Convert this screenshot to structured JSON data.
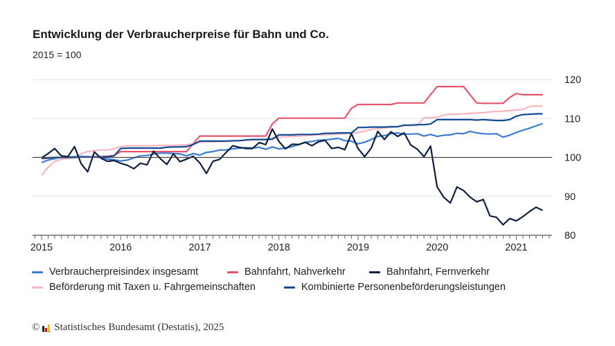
{
  "chart_data": {
    "type": "line",
    "title": "Entwicklung der Verbraucherpreise für Bahn und Co.",
    "subtitle": "2015 = 100",
    "xlabel": "",
    "ylabel": "",
    "x_start": "2015-01",
    "x_frequency": "monthly",
    "x_tick_labels": [
      "2015",
      "2016",
      "2017",
      "2018",
      "2019",
      "2020",
      "2021"
    ],
    "y_tick_labels": [
      "80",
      "90",
      "100",
      "110",
      "120"
    ],
    "ylim": [
      80,
      120
    ],
    "reference_line": 100,
    "grid": true,
    "y_axis_side": "right",
    "legend_position": "bottom",
    "series": [
      {
        "name": "Verbraucherpreisindex insgesamt",
        "color": "#3a7bd5",
        "values": [
          98.7,
          99.3,
          99.7,
          100,
          100.1,
          100.2,
          100.3,
          100.2,
          100.1,
          100,
          99.6,
          99.4,
          99.1,
          99.3,
          99.9,
          100.4,
          100.5,
          100.9,
          101.1,
          101.1,
          101.0,
          100.9,
          100.4,
          101.0,
          100.6,
          101.3,
          101.5,
          101.9,
          101.9,
          102.2,
          102.4,
          102.5,
          102.4,
          102.6,
          102.1,
          102.7,
          102.2,
          102.4,
          102.8,
          103.3,
          103.9,
          104.1,
          104.4,
          104.5,
          104.7,
          104.9,
          104.3,
          104.2,
          103.5,
          103.9,
          104.6,
          105.4,
          105.6,
          106.1,
          106.3,
          106.0,
          106.0,
          106.1,
          105.5,
          105.9,
          105.4,
          105.7,
          105.8,
          106.2,
          106.1,
          106.7,
          106.3,
          106.1,
          106.0,
          106.1,
          105.2,
          105.7,
          106.4,
          107.0,
          107.5,
          108.1,
          108.7
        ]
      },
      {
        "name": "Bahnfahrt, Nahverkehr",
        "color": "#e8546a",
        "values": [
          99.7,
          99.8,
          99.9,
          100,
          100,
          100,
          100.1,
          100.2,
          100.2,
          100.2,
          100.3,
          100.5,
          101.5,
          101.5,
          101.5,
          101.5,
          101.5,
          101.5,
          101.5,
          101.5,
          101.5,
          101.5,
          101.5,
          103.5,
          105.5,
          105.5,
          105.5,
          105.5,
          105.5,
          105.5,
          105.5,
          105.5,
          105.5,
          105.5,
          105.5,
          108.6,
          110.1,
          110.1,
          110.1,
          110.1,
          110.1,
          110.1,
          110.1,
          110.1,
          110.1,
          110.1,
          110.1,
          112.6,
          113.6,
          113.6,
          113.6,
          113.6,
          113.6,
          113.6,
          114,
          114,
          114,
          114,
          114,
          116.1,
          118.2,
          118.2,
          118.2,
          118.2,
          118.2,
          116.1,
          114,
          113.9,
          113.9,
          113.9,
          113.9,
          115.4,
          116.4,
          116.1,
          116.1,
          116.1,
          116.1
        ]
      },
      {
        "name": "Bahnfahrt, Fernverkehr",
        "color": "#0d1f3f",
        "values": [
          99.9,
          101,
          102.3,
          100.4,
          100.2,
          102.8,
          98.4,
          96.3,
          101.4,
          99.8,
          99,
          99.2,
          98.5,
          98,
          97.1,
          98.5,
          98.1,
          101.6,
          99.7,
          98.2,
          100.9,
          98.9,
          99.6,
          100.3,
          98.6,
          95.9,
          99,
          99.5,
          101.3,
          103,
          102.6,
          102.3,
          102.3,
          103.8,
          103.3,
          107.3,
          104.1,
          102.2,
          103.4,
          103.3,
          103.9,
          103,
          104,
          104.4,
          102.3,
          102.6,
          102,
          106.1,
          102.3,
          100.2,
          102.4,
          106.7,
          104.6,
          106.6,
          105.4,
          106.3,
          103.2,
          102.1,
          100.2,
          102.9,
          92.4,
          89.8,
          88.3,
          92.4,
          91.5,
          89.8,
          88.6,
          89.2,
          85,
          84.6,
          82.7,
          84.3,
          83.7,
          84.8,
          86.1,
          87.2,
          86.4
        ]
      },
      {
        "name": "Beförderung mit Taxen u. Fahrgemeinschaften",
        "color": "#f7b7bf",
        "values": [
          95.4,
          97.5,
          99,
          99.5,
          99.8,
          100,
          101,
          101.5,
          101.7,
          101.9,
          101.9,
          102.2,
          102.8,
          103,
          103,
          103,
          103,
          103,
          103.1,
          103.1,
          103.1,
          103.2,
          103.2,
          103.5,
          103.9,
          104,
          104,
          104.1,
          104.1,
          104.2,
          104.3,
          104.4,
          104.5,
          104.6,
          104.7,
          105,
          105.2,
          105.3,
          105.4,
          105.5,
          105.6,
          105.7,
          105.8,
          105.8,
          105.9,
          106,
          106.1,
          106.2,
          106.4,
          106.8,
          107.2,
          107.4,
          107.6,
          107.8,
          107.9,
          108.1,
          108.2,
          108.2,
          110.2,
          110.2,
          110.3,
          110.9,
          111.1,
          111.1,
          111.2,
          111.3,
          111.4,
          111.5,
          111.7,
          111.8,
          111.9,
          112,
          112.2,
          112.3,
          113.1,
          113.2,
          113.2
        ]
      },
      {
        "name": "Kombinierte Personenbeförderungsleistungen",
        "color": "#114b96",
        "values": [
          99.8,
          99.9,
          100,
          100,
          100,
          100,
          100.1,
          100.1,
          100.1,
          100.1,
          100.2,
          100.4,
          102.3,
          102.4,
          102.4,
          102.4,
          102.4,
          102.4,
          102.4,
          102.6,
          102.7,
          102.7,
          102.8,
          103.3,
          104.2,
          104.2,
          104.2,
          104.2,
          104.2,
          104.3,
          104.3,
          104.5,
          104.6,
          104.6,
          104.6,
          104.7,
          105.8,
          105.8,
          105.8,
          105.9,
          105.9,
          105.9,
          106,
          106.2,
          106.2,
          106.3,
          106.3,
          106.3,
          107.7,
          107.7,
          107.8,
          107.8,
          107.8,
          107.9,
          107.9,
          108.3,
          108.3,
          108.4,
          108.4,
          108.6,
          109.7,
          109.7,
          109.7,
          109.7,
          109.7,
          109.7,
          109.6,
          109.7,
          109.6,
          109.5,
          109.5,
          109.7,
          110.6,
          111.0,
          111.1,
          111.2,
          111.2
        ]
      }
    ]
  },
  "footer": {
    "copyright_symbol": "©",
    "source": "Statistisches Bundesamt (Destatis), 2025"
  }
}
